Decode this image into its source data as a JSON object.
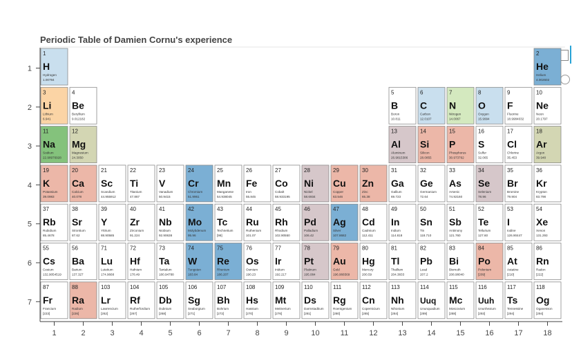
{
  "toolbar": {
    "box_zoom": "box-zoom-icon",
    "crosshair": "crosshair-icon"
  },
  "chart_data": {
    "type": "heatmap",
    "title": "Periodic Table of Damien Cornu's experience",
    "xlabel": "",
    "ylabel": "",
    "x_ticks": [
      1,
      2,
      3,
      4,
      5,
      6,
      7,
      8,
      9,
      10,
      11,
      12,
      13,
      14,
      15,
      16,
      17,
      18
    ],
    "y_ticks": [
      1,
      2,
      3,
      4,
      5,
      6,
      7
    ],
    "colors": {
      "blue": "#7bafd4",
      "lightblue": "#c9dfee",
      "orange": "#fbd4a5",
      "green": "#84c27c",
      "olive": "#d3d6b3",
      "lightgreen": "#d4e9bf",
      "mauve": "#d6c7ca",
      "salmon": "#ecb7a8"
    },
    "elements": [
      {
        "n": 1,
        "s": "H",
        "name": "Hydrogen",
        "m": "1.00794",
        "g": 1,
        "p": 1,
        "c": "lightblue"
      },
      {
        "n": 2,
        "s": "He",
        "name": "Helium",
        "m": "4.002602",
        "g": 18,
        "p": 1,
        "c": "blue"
      },
      {
        "n": 3,
        "s": "Li",
        "name": "Lithium",
        "m": "6.941",
        "g": 1,
        "p": 2,
        "c": "orange"
      },
      {
        "n": 4,
        "s": "Be",
        "name": "Beryllium",
        "m": "9.012182",
        "g": 2,
        "p": 2,
        "c": ""
      },
      {
        "n": 5,
        "s": "B",
        "name": "Boron",
        "m": "10.811",
        "g": 13,
        "p": 2,
        "c": ""
      },
      {
        "n": 6,
        "s": "C",
        "name": "Carbon",
        "m": "12.0107",
        "g": 14,
        "p": 2,
        "c": "lightblue"
      },
      {
        "n": 7,
        "s": "N",
        "name": "Nitrogen",
        "m": "14.0067",
        "g": 15,
        "p": 2,
        "c": "lightgreen"
      },
      {
        "n": 8,
        "s": "O",
        "name": "Oxygen",
        "m": "15.9994",
        "g": 16,
        "p": 2,
        "c": "lightblue"
      },
      {
        "n": 9,
        "s": "F",
        "name": "Fluorine",
        "m": "18.9984032",
        "g": 17,
        "p": 2,
        "c": ""
      },
      {
        "n": 10,
        "s": "Ne",
        "name": "Neon",
        "m": "20.1797",
        "g": 18,
        "p": 2,
        "c": ""
      },
      {
        "n": 11,
        "s": "Na",
        "name": "Sodium",
        "m": "22.98976928",
        "g": 1,
        "p": 3,
        "c": "green"
      },
      {
        "n": 12,
        "s": "Mg",
        "name": "Magnesium",
        "m": "24.3050",
        "g": 2,
        "p": 3,
        "c": "olive"
      },
      {
        "n": 13,
        "s": "Al",
        "name": "Aluminum",
        "m": "26.9815386",
        "g": 13,
        "p": 3,
        "c": "mauve"
      },
      {
        "n": 14,
        "s": "Si",
        "name": "Silicon",
        "m": "28.0855",
        "g": 14,
        "p": 3,
        "c": "salmon"
      },
      {
        "n": 15,
        "s": "P",
        "name": "Phosphorus",
        "m": "30.973762",
        "g": 15,
        "p": 3,
        "c": "salmon"
      },
      {
        "n": 16,
        "s": "S",
        "name": "Sulfur",
        "m": "32.065",
        "g": 16,
        "p": 3,
        "c": ""
      },
      {
        "n": 17,
        "s": "Cl",
        "name": "Chlorine",
        "m": "35.453",
        "g": 17,
        "p": 3,
        "c": ""
      },
      {
        "n": 18,
        "s": "Ar",
        "name": "Argon",
        "m": "39.948",
        "g": 18,
        "p": 3,
        "c": "olive"
      },
      {
        "n": 19,
        "s": "K",
        "name": "Potassium",
        "m": "39.0983",
        "g": 1,
        "p": 4,
        "c": "salmon"
      },
      {
        "n": 20,
        "s": "Ca",
        "name": "Calcium",
        "m": "40.078",
        "g": 2,
        "p": 4,
        "c": "salmon"
      },
      {
        "n": 21,
        "s": "Sc",
        "name": "Scandium",
        "m": "44.955912",
        "g": 3,
        "p": 4,
        "c": ""
      },
      {
        "n": 22,
        "s": "Ti",
        "name": "Titanium",
        "m": "47.867",
        "g": 4,
        "p": 4,
        "c": ""
      },
      {
        "n": 23,
        "s": "V",
        "name": "Vanadium",
        "m": "50.9415",
        "g": 5,
        "p": 4,
        "c": ""
      },
      {
        "n": 24,
        "s": "Cr",
        "name": "Chromium",
        "m": "51.9961",
        "g": 6,
        "p": 4,
        "c": "blue"
      },
      {
        "n": 25,
        "s": "Mn",
        "name": "Manganese",
        "m": "54.938045",
        "g": 7,
        "p": 4,
        "c": ""
      },
      {
        "n": 26,
        "s": "Fe",
        "name": "Iron",
        "m": "55.845",
        "g": 8,
        "p": 4,
        "c": ""
      },
      {
        "n": 27,
        "s": "Co",
        "name": "Cobalt",
        "m": "58.933195",
        "g": 9,
        "p": 4,
        "c": ""
      },
      {
        "n": 28,
        "s": "Ni",
        "name": "Nickel",
        "m": "58.6934",
        "g": 10,
        "p": 4,
        "c": "mauve"
      },
      {
        "n": 29,
        "s": "Cu",
        "name": "Copper",
        "m": "63.546",
        "g": 11,
        "p": 4,
        "c": "salmon"
      },
      {
        "n": 30,
        "s": "Zn",
        "name": "Zinc",
        "m": "65.38",
        "g": 12,
        "p": 4,
        "c": "salmon"
      },
      {
        "n": 31,
        "s": "Ga",
        "name": "Gallium",
        "m": "69.723",
        "g": 13,
        "p": 4,
        "c": ""
      },
      {
        "n": 32,
        "s": "Ge",
        "name": "Germanium",
        "m": "72.64",
        "g": 14,
        "p": 4,
        "c": ""
      },
      {
        "n": 33,
        "s": "As",
        "name": "Arsenic",
        "m": "74.92160",
        "g": 15,
        "p": 4,
        "c": ""
      },
      {
        "n": 34,
        "s": "Se",
        "name": "Selenium",
        "m": "78.96",
        "g": 16,
        "p": 4,
        "c": "mauve"
      },
      {
        "n": 35,
        "s": "Br",
        "name": "Bromine",
        "m": "79.904",
        "g": 17,
        "p": 4,
        "c": ""
      },
      {
        "n": 36,
        "s": "Kr",
        "name": "Krypton",
        "m": "83.798",
        "g": 18,
        "p": 4,
        "c": ""
      },
      {
        "n": 37,
        "s": "Rb",
        "name": "Rubidium",
        "m": "85.4678",
        "g": 1,
        "p": 5,
        "c": ""
      },
      {
        "n": 38,
        "s": "Sr",
        "name": "Strontium",
        "m": "87.62",
        "g": 2,
        "p": 5,
        "c": ""
      },
      {
        "n": 39,
        "s": "Y",
        "name": "Yttrium",
        "m": "88.90585",
        "g": 3,
        "p": 5,
        "c": ""
      },
      {
        "n": 40,
        "s": "Zr",
        "name": "Zirconium",
        "m": "91.224",
        "g": 4,
        "p": 5,
        "c": ""
      },
      {
        "n": 41,
        "s": "Nb",
        "name": "Niobium",
        "m": "92.90638",
        "g": 5,
        "p": 5,
        "c": ""
      },
      {
        "n": 42,
        "s": "Mo",
        "name": "Molybdenum",
        "m": "95.96",
        "g": 6,
        "p": 5,
        "c": "blue"
      },
      {
        "n": 43,
        "s": "Tc",
        "name": "Technetium",
        "m": "[98]",
        "g": 7,
        "p": 5,
        "c": ""
      },
      {
        "n": 44,
        "s": "Ru",
        "name": "Ruthenium",
        "m": "101.07",
        "g": 8,
        "p": 5,
        "c": ""
      },
      {
        "n": 45,
        "s": "Rh",
        "name": "Rhodium",
        "m": "102.90550",
        "g": 9,
        "p": 5,
        "c": ""
      },
      {
        "n": 46,
        "s": "Pd",
        "name": "Palladium",
        "m": "106.42",
        "g": 10,
        "p": 5,
        "c": "mauve"
      },
      {
        "n": 47,
        "s": "Ag",
        "name": "Silver",
        "m": "107.8682",
        "g": 11,
        "p": 5,
        "c": "blue"
      },
      {
        "n": 48,
        "s": "Cd",
        "name": "Cadmium",
        "m": "112.411",
        "g": 12,
        "p": 5,
        "c": ""
      },
      {
        "n": 49,
        "s": "In",
        "name": "Indium",
        "m": "114.818",
        "g": 13,
        "p": 5,
        "c": ""
      },
      {
        "n": 50,
        "s": "Sn",
        "name": "Tin",
        "m": "118.710",
        "g": 14,
        "p": 5,
        "c": ""
      },
      {
        "n": 51,
        "s": "Sb",
        "name": "Antimony",
        "m": "121.760",
        "g": 15,
        "p": 5,
        "c": ""
      },
      {
        "n": 52,
        "s": "Te",
        "name": "Tellurium",
        "m": "127.60",
        "g": 16,
        "p": 5,
        "c": ""
      },
      {
        "n": 53,
        "s": "I",
        "name": "Iodine",
        "m": "126.90447",
        "g": 17,
        "p": 5,
        "c": ""
      },
      {
        "n": 54,
        "s": "Xe",
        "name": "Xenon",
        "m": "131.293",
        "g": 18,
        "p": 5,
        "c": ""
      },
      {
        "n": 55,
        "s": "Cs",
        "name": "Cesium",
        "m": "132.9054519",
        "g": 1,
        "p": 6,
        "c": ""
      },
      {
        "n": 56,
        "s": "Ba",
        "name": "Barium",
        "m": "137.327",
        "g": 2,
        "p": 6,
        "c": ""
      },
      {
        "n": 71,
        "s": "Lu",
        "name": "Lutetium",
        "m": "174.9668",
        "g": 3,
        "p": 6,
        "c": ""
      },
      {
        "n": 72,
        "s": "Hf",
        "name": "Hafnium",
        "m": "178.49",
        "g": 4,
        "p": 6,
        "c": ""
      },
      {
        "n": 73,
        "s": "Ta",
        "name": "Tantalum",
        "m": "180.94788",
        "g": 5,
        "p": 6,
        "c": ""
      },
      {
        "n": 74,
        "s": "W",
        "name": "Tungsten",
        "m": "183.84",
        "g": 6,
        "p": 6,
        "c": "blue"
      },
      {
        "n": 75,
        "s": "Re",
        "name": "Rhenium",
        "m": "186.207",
        "g": 7,
        "p": 6,
        "c": "blue"
      },
      {
        "n": 76,
        "s": "Os",
        "name": "Osmium",
        "m": "190.23",
        "g": 8,
        "p": 6,
        "c": ""
      },
      {
        "n": 77,
        "s": "Ir",
        "name": "Iridium",
        "m": "192.217",
        "g": 9,
        "p": 6,
        "c": ""
      },
      {
        "n": 78,
        "s": "Pt",
        "name": "Platinum",
        "m": "195.084",
        "g": 10,
        "p": 6,
        "c": "mauve"
      },
      {
        "n": 79,
        "s": "Au",
        "name": "Gold",
        "m": "196.966569",
        "g": 11,
        "p": 6,
        "c": "salmon"
      },
      {
        "n": 80,
        "s": "Hg",
        "name": "Mercury",
        "m": "200.59",
        "g": 12,
        "p": 6,
        "c": ""
      },
      {
        "n": 81,
        "s": "Tl",
        "name": "Thallium",
        "m": "204.3833",
        "g": 13,
        "p": 6,
        "c": ""
      },
      {
        "n": 82,
        "s": "Pb",
        "name": "Lead",
        "m": "207.2",
        "g": 14,
        "p": 6,
        "c": ""
      },
      {
        "n": 83,
        "s": "Bi",
        "name": "Bismuth",
        "m": "208.98040",
        "g": 15,
        "p": 6,
        "c": ""
      },
      {
        "n": 84,
        "s": "Po",
        "name": "Polonium",
        "m": "[209]",
        "g": 16,
        "p": 6,
        "c": "salmon"
      },
      {
        "n": 85,
        "s": "At",
        "name": "Astatine",
        "m": "[210]",
        "g": 17,
        "p": 6,
        "c": ""
      },
      {
        "n": 86,
        "s": "Rn",
        "name": "Radon",
        "m": "[222]",
        "g": 18,
        "p": 6,
        "c": ""
      },
      {
        "n": 87,
        "s": "Fr",
        "name": "Francium",
        "m": "[223]",
        "g": 1,
        "p": 7,
        "c": ""
      },
      {
        "n": 88,
        "s": "Ra",
        "name": "Radium",
        "m": "[226]",
        "g": 2,
        "p": 7,
        "c": "salmon"
      },
      {
        "n": 103,
        "s": "Lr",
        "name": "Lawrencium",
        "m": "[262]",
        "g": 3,
        "p": 7,
        "c": ""
      },
      {
        "n": 104,
        "s": "Rf",
        "name": "Rutherfordium",
        "m": "[267]",
        "g": 4,
        "p": 7,
        "c": ""
      },
      {
        "n": 105,
        "s": "Db",
        "name": "Dubnium",
        "m": "[268]",
        "g": 5,
        "p": 7,
        "c": ""
      },
      {
        "n": 106,
        "s": "Sg",
        "name": "Seaborgium",
        "m": "[271]",
        "g": 6,
        "p": 7,
        "c": ""
      },
      {
        "n": 107,
        "s": "Bh",
        "name": "Bohrium",
        "m": "[272]",
        "g": 7,
        "p": 7,
        "c": ""
      },
      {
        "n": 108,
        "s": "Hs",
        "name": "Hassium",
        "m": "[270]",
        "g": 8,
        "p": 7,
        "c": ""
      },
      {
        "n": 109,
        "s": "Mt",
        "name": "Meitnerium",
        "m": "[276]",
        "g": 9,
        "p": 7,
        "c": ""
      },
      {
        "n": 110,
        "s": "Ds",
        "name": "Darmstadtium",
        "m": "[281]",
        "g": 10,
        "p": 7,
        "c": ""
      },
      {
        "n": 111,
        "s": "Rg",
        "name": "Roentgenium",
        "m": "[280]",
        "g": 11,
        "p": 7,
        "c": ""
      },
      {
        "n": 112,
        "s": "Cn",
        "name": "Copernicium",
        "m": "[285]",
        "g": 12,
        "p": 7,
        "c": ""
      },
      {
        "n": 113,
        "s": "Nh",
        "name": "Nihonium",
        "m": "[284]",
        "g": 13,
        "p": 7,
        "c": ""
      },
      {
        "n": 114,
        "s": "Uuq",
        "name": "Ununquadium",
        "m": "[289]",
        "g": 14,
        "p": 7,
        "c": ""
      },
      {
        "n": 115,
        "s": "Mc",
        "name": "Moscovium",
        "m": "[288]",
        "g": 15,
        "p": 7,
        "c": ""
      },
      {
        "n": 116,
        "s": "Uuh",
        "name": "Ununhexium",
        "m": "[293]",
        "g": 16,
        "p": 7,
        "c": ""
      },
      {
        "n": 117,
        "s": "Ts",
        "name": "Tennessine",
        "m": "[294]",
        "g": 17,
        "p": 7,
        "c": ""
      },
      {
        "n": 118,
        "s": "Og",
        "name": "Oganesson",
        "m": "[294]",
        "g": 18,
        "p": 7,
        "c": ""
      }
    ]
  }
}
